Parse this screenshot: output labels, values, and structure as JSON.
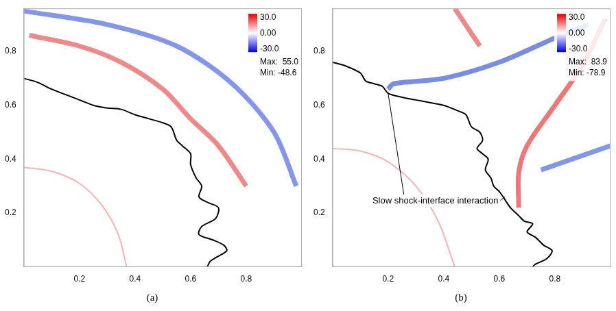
{
  "chart_data": [
    {
      "type": "line",
      "title": "(a)",
      "xlim": [
        0,
        1
      ],
      "ylim": [
        0,
        0.96
      ],
      "xticks": [
        0.2,
        0.4,
        0.6,
        0.8
      ],
      "yticks": [
        0.2,
        0.4,
        0.6,
        0.8
      ],
      "grid": false,
      "colorbar": {
        "range": [
          -30,
          30
        ],
        "ticks": [
          {
            "value": 30,
            "label": "30.0"
          },
          {
            "value": 0,
            "label": "0.00"
          },
          {
            "value": -30,
            "label": "-30.0"
          }
        ]
      },
      "annotations": [
        {
          "text": "Max:  55.0"
        },
        {
          "text": "Min: -48.6"
        }
      ],
      "series": [
        {
          "color": "#3050d8",
          "x": [
            0.0,
            0.3,
            0.55,
            0.75,
            0.9,
            0.98
          ],
          "values": [
            0.95,
            0.9,
            0.82,
            0.68,
            0.5,
            0.3
          ]
        },
        {
          "color": "#e03a3a",
          "x": [
            0.02,
            0.2,
            0.35,
            0.5,
            0.6,
            0.7,
            0.8
          ],
          "values": [
            0.86,
            0.82,
            0.76,
            0.66,
            0.55,
            0.45,
            0.3
          ]
        },
        {
          "color": "#f08080",
          "x": [
            0.0,
            0.1,
            0.2,
            0.28,
            0.34,
            0.37
          ],
          "values": [
            0.37,
            0.355,
            0.31,
            0.23,
            0.12,
            0.0
          ]
        },
        {
          "color": "#000000",
          "x": [
            0.0,
            0.05,
            0.1,
            0.15,
            0.2,
            0.25,
            0.3,
            0.35,
            0.4,
            0.45,
            0.5,
            0.53,
            0.55,
            0.57,
            0.6,
            0.6,
            0.62,
            0.64,
            0.63,
            0.66,
            0.7,
            0.69,
            0.64,
            0.63,
            0.68,
            0.72,
            0.73,
            0.7,
            0.67,
            0.66
          ],
          "values": [
            0.7,
            0.685,
            0.66,
            0.64,
            0.62,
            0.6,
            0.59,
            0.585,
            0.565,
            0.55,
            0.535,
            0.52,
            0.47,
            0.45,
            0.42,
            0.38,
            0.33,
            0.3,
            0.26,
            0.24,
            0.22,
            0.18,
            0.15,
            0.12,
            0.1,
            0.08,
            0.06,
            0.04,
            0.02,
            0.0
          ]
        }
      ]
    },
    {
      "type": "line",
      "title": "(b)",
      "xlim": [
        0,
        1
      ],
      "ylim": [
        0,
        0.96
      ],
      "xticks": [
        0.2,
        0.4,
        0.6,
        0.8
      ],
      "yticks": [
        0.2,
        0.4,
        0.6,
        0.8
      ],
      "grid": false,
      "colorbar": {
        "range": [
          -30,
          30
        ],
        "ticks": [
          {
            "value": 30,
            "label": "30.0"
          },
          {
            "value": 0,
            "label": "0.00"
          },
          {
            "value": -30,
            "label": "-30.0"
          }
        ]
      },
      "annotations": [
        {
          "text": "Max:  83.9"
        },
        {
          "text": "Min: -78.9"
        },
        {
          "text": "Slow shock-interface interaction",
          "x": 0.37,
          "y": 0.245,
          "points": [
            [
              0.2,
              0.645
            ],
            [
              0.62,
              0.26
            ]
          ]
        }
      ],
      "series": [
        {
          "color": "#2040d0",
          "x": [
            0.2,
            0.22,
            0.4,
            0.6,
            0.8,
            0.92
          ],
          "values": [
            0.66,
            0.68,
            0.7,
            0.76,
            0.85,
            0.9
          ]
        },
        {
          "color": "#e02020",
          "x": [
            0.67,
            0.67,
            0.7,
            0.8,
            0.9,
            0.98
          ],
          "values": [
            0.22,
            0.35,
            0.45,
            0.6,
            0.75,
            0.92
          ]
        },
        {
          "color": "#e03a3a",
          "x": [
            0.44,
            0.53
          ],
          "values": [
            0.96,
            0.82
          ]
        },
        {
          "color": "#3050d8",
          "x": [
            0.75,
            1.0
          ],
          "values": [
            0.36,
            0.45
          ]
        },
        {
          "color": "#f08080",
          "x": [
            0.0,
            0.1,
            0.2,
            0.3,
            0.38,
            0.44
          ],
          "values": [
            0.44,
            0.43,
            0.39,
            0.3,
            0.17,
            0.0
          ]
        },
        {
          "color": "#000000",
          "x": [
            0.0,
            0.05,
            0.1,
            0.12,
            0.15,
            0.18,
            0.2,
            0.25,
            0.3,
            0.35,
            0.4,
            0.45,
            0.48,
            0.5,
            0.53,
            0.54,
            0.52,
            0.54,
            0.56,
            0.55,
            0.57,
            0.58,
            0.6,
            0.62,
            0.64,
            0.67,
            0.69,
            0.72,
            0.7,
            0.73,
            0.76,
            0.79,
            0.77,
            0.73,
            0.72
          ],
          "values": [
            0.76,
            0.745,
            0.72,
            0.69,
            0.68,
            0.67,
            0.645,
            0.63,
            0.62,
            0.61,
            0.6,
            0.58,
            0.565,
            0.52,
            0.5,
            0.47,
            0.44,
            0.42,
            0.4,
            0.36,
            0.33,
            0.3,
            0.28,
            0.25,
            0.22,
            0.19,
            0.17,
            0.16,
            0.13,
            0.11,
            0.08,
            0.06,
            0.03,
            0.01,
            0.0
          ]
        }
      ]
    }
  ]
}
